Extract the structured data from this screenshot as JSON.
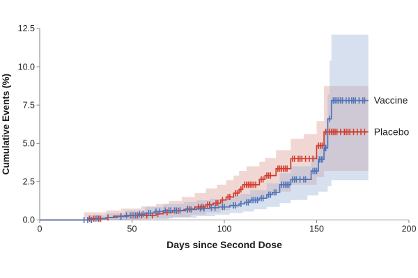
{
  "chart_data": {
    "type": "line",
    "variant": "kaplan-meier-cumulative-incidence-step",
    "title": "",
    "xlabel": "Days since Second Dose",
    "ylabel": "Cumulative Events (%)",
    "xlim": [
      0,
      200
    ],
    "ylim": [
      0,
      12.5
    ],
    "grid": false,
    "legend_position": "end-of-curve-right",
    "axis_color": "#8c8c8c",
    "text_color": "#1c1c1c",
    "xticks": [
      {
        "label": "0",
        "value": 0
      },
      {
        "label": "50",
        "value": 50
      },
      {
        "label": "100",
        "value": 100
      },
      {
        "label": "150",
        "value": 150
      },
      {
        "label": "200",
        "value": 200
      }
    ],
    "yticks": [
      {
        "label": "0.0",
        "value": 0
      },
      {
        "label": "2.5",
        "value": 2.5
      },
      {
        "label": "5.0",
        "value": 5
      },
      {
        "label": "7.5",
        "value": 7.5
      },
      {
        "label": "10.0",
        "value": 10
      },
      {
        "label": "12.5",
        "value": 12.5
      }
    ],
    "series": [
      {
        "name": "Vaccine",
        "line_color": "#4f74b8",
        "band_fill": "#9fb6d8",
        "band_opacity": 0.42,
        "end_day": 178,
        "final_value_pct": 7.8,
        "steps": [
          [
            0,
            0
          ],
          [
            30,
            0.1
          ],
          [
            36,
            0.16
          ],
          [
            42,
            0.22
          ],
          [
            46,
            0.3
          ],
          [
            53,
            0.38
          ],
          [
            57,
            0.45
          ],
          [
            62,
            0.55
          ],
          [
            67,
            0.62
          ],
          [
            78,
            0.68
          ],
          [
            85,
            0.75
          ],
          [
            92,
            0.8
          ],
          [
            97,
            0.85
          ],
          [
            103,
            0.95
          ],
          [
            108,
            1.05
          ],
          [
            111,
            1.15
          ],
          [
            114,
            1.3
          ],
          [
            119,
            1.42
          ],
          [
            123,
            1.65
          ],
          [
            126,
            1.8
          ],
          [
            130,
            2.3
          ],
          [
            136,
            2.65
          ],
          [
            147,
            3.2
          ],
          [
            151,
            3.95
          ],
          [
            154,
            4.7
          ],
          [
            156,
            6.6
          ],
          [
            158,
            7.8
          ]
        ],
        "censor_days": [
          24,
          26,
          28,
          31,
          44,
          47,
          49,
          51,
          52,
          54,
          56,
          59,
          60,
          63,
          65,
          68,
          70,
          71,
          73,
          74,
          76,
          80,
          82,
          87,
          89,
          93,
          95,
          99,
          100,
          105,
          106,
          109,
          112,
          113,
          115,
          116,
          117,
          118,
          120,
          121,
          124,
          125,
          127,
          128,
          131,
          132,
          133,
          134,
          135,
          137,
          138,
          139,
          141,
          143,
          144,
          148,
          149,
          150,
          151.5,
          152.5,
          153,
          154.5,
          155,
          157,
          159,
          160,
          161,
          162,
          163,
          164,
          166,
          167.5,
          169,
          170,
          171,
          173,
          175,
          176
        ],
        "band_upper": [
          [
            26,
            0.3
          ],
          [
            36,
            0.45
          ],
          [
            46,
            0.62
          ],
          [
            57,
            0.85
          ],
          [
            67,
            1.05
          ],
          [
            78,
            1.18
          ],
          [
            85,
            1.28
          ],
          [
            92,
            1.38
          ],
          [
            103,
            1.55
          ],
          [
            108,
            1.7
          ],
          [
            114,
            1.95
          ],
          [
            123,
            2.4
          ],
          [
            130,
            3.05
          ],
          [
            136,
            3.5
          ],
          [
            147,
            4.2
          ],
          [
            151,
            5.0
          ],
          [
            154,
            5.9
          ],
          [
            156,
            8.2
          ],
          [
            157,
            10.4
          ],
          [
            158,
            12.1
          ]
        ],
        "band_lower": [
          [
            26,
            0
          ],
          [
            55,
            0.05
          ],
          [
            70,
            0.15
          ],
          [
            85,
            0.25
          ],
          [
            95,
            0.35
          ],
          [
            103,
            0.45
          ],
          [
            110,
            0.55
          ],
          [
            116,
            0.7
          ],
          [
            123,
            0.85
          ],
          [
            130,
            1.1
          ],
          [
            136,
            1.3
          ],
          [
            145,
            1.6
          ],
          [
            151,
            1.85
          ],
          [
            156,
            2.2
          ],
          [
            158,
            2.6
          ]
        ]
      },
      {
        "name": "Placebo",
        "line_color": "#d13a2a",
        "band_fill": "#dd9b90",
        "band_opacity": 0.4,
        "end_day": 178,
        "final_value_pct": 5.75,
        "steps": [
          [
            0,
            0
          ],
          [
            26,
            0.08
          ],
          [
            36,
            0.16
          ],
          [
            40,
            0.25
          ],
          [
            48,
            0.3
          ],
          [
            63,
            0.4
          ],
          [
            67,
            0.5
          ],
          [
            72,
            0.6
          ],
          [
            79,
            0.72
          ],
          [
            84,
            0.85
          ],
          [
            90,
            1.0
          ],
          [
            94,
            1.1
          ],
          [
            98,
            1.3
          ],
          [
            101,
            1.5
          ],
          [
            105,
            1.75
          ],
          [
            108,
            2.0
          ],
          [
            110,
            2.3
          ],
          [
            119,
            2.65
          ],
          [
            122,
            2.9
          ],
          [
            128,
            3.35
          ],
          [
            136,
            4.0
          ],
          [
            150,
            4.85
          ],
          [
            154,
            5.75
          ]
        ],
        "censor_days": [
          27,
          29,
          30,
          32,
          33,
          37,
          44,
          50,
          53,
          55,
          58,
          61,
          64,
          69,
          74,
          75,
          80,
          81,
          86,
          87.5,
          88.5,
          91,
          92,
          95.5,
          96.5,
          99,
          102,
          103,
          106,
          107,
          109,
          111,
          112,
          113,
          114,
          115,
          116,
          117,
          120,
          121,
          123,
          124,
          125,
          129,
          130,
          131,
          132,
          133,
          134,
          137,
          138,
          140,
          141,
          142,
          144,
          146,
          148,
          151,
          152,
          153,
          155,
          156,
          157,
          158,
          159,
          160,
          161,
          163,
          165,
          166,
          167,
          168,
          170,
          172,
          174,
          176
        ],
        "band_upper": [
          [
            24,
            0.5
          ],
          [
            36,
            0.62
          ],
          [
            44,
            0.75
          ],
          [
            55,
            0.9
          ],
          [
            63,
            1.05
          ],
          [
            70,
            1.25
          ],
          [
            77,
            1.5
          ],
          [
            84,
            1.75
          ],
          [
            90,
            2.05
          ],
          [
            96,
            2.3
          ],
          [
            101,
            2.6
          ],
          [
            105,
            2.9
          ],
          [
            108,
            3.2
          ],
          [
            112,
            3.5
          ],
          [
            119,
            3.8
          ],
          [
            122,
            4.05
          ],
          [
            128,
            4.55
          ],
          [
            136,
            5.3
          ],
          [
            143,
            5.6
          ],
          [
            150,
            6.45
          ],
          [
            154,
            8.75
          ]
        ],
        "band_lower": [
          [
            24,
            0
          ],
          [
            48,
            0.05
          ],
          [
            60,
            0.1
          ],
          [
            72,
            0.2
          ],
          [
            82,
            0.35
          ],
          [
            90,
            0.5
          ],
          [
            98,
            0.65
          ],
          [
            103,
            0.8
          ],
          [
            108,
            1.0
          ],
          [
            112,
            1.2
          ],
          [
            119,
            1.4
          ],
          [
            124,
            1.6
          ],
          [
            128,
            1.85
          ],
          [
            136,
            2.3
          ],
          [
            150,
            2.8
          ],
          [
            154,
            3.2
          ]
        ]
      }
    ]
  }
}
